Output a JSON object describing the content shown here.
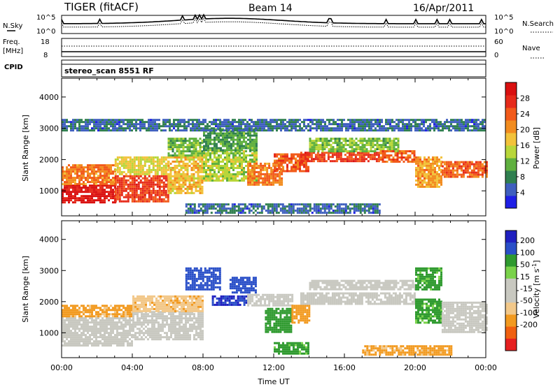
{
  "header": {
    "title": "TIGER (fitACF)",
    "beam": "Beam 14",
    "date": "16/Apr/2011"
  },
  "summary": {
    "nsky_label": "N.Sky",
    "nsearch_label": "N.Search",
    "noise_tick_top": "10^5",
    "noise_tick_bottom": "10^0",
    "freq_label_1": "Freq.",
    "freq_label_2": "[MHz]",
    "freq_tick_top": "18",
    "freq_tick_bottom": "8",
    "nave_label": "Nave",
    "nave_tick_top": "60",
    "nave_tick_bottom": "0",
    "cpid_label": "CPID",
    "cpid_value": "stereo_scan 8551 RF"
  },
  "colors": {
    "power": [
      "#1f1fe6",
      "#3f5fbf",
      "#2f7f4f",
      "#5fb03f",
      "#b8d63a",
      "#f2c23a",
      "#f28c1f",
      "#f25a1a",
      "#e62a1a",
      "#d91010"
    ],
    "velocity": [
      "#e62020",
      "#f06010",
      "#f29a20",
      "#f2c88a",
      "#c8c8c0",
      "#c8c8c0",
      "#7ad24a",
      "#2f9a2f",
      "#2a4fc8",
      "#2020c0"
    ],
    "ground": "#c8c8c0"
  },
  "chart_data": [
    {
      "type": "heatmap",
      "name": "power",
      "ylabel": "Slant Range [km]",
      "yticks": [
        1000,
        2000,
        3000,
        4000
      ],
      "ylim": [
        200,
        4600
      ],
      "xlim": [
        0,
        24
      ],
      "colorbar_label": "Power [dB]",
      "colorbar_ticks": [
        4,
        8,
        12,
        16,
        20,
        24,
        28
      ],
      "colorbar_range": [
        0,
        32
      ],
      "regions": [
        {
          "x": [
            0.0,
            3.0
          ],
          "y": [
            600,
            1200
          ],
          "v": 30
        },
        {
          "x": [
            0.0,
            3.0
          ],
          "y": [
            1200,
            1850
          ],
          "v": 22
        },
        {
          "x": [
            3.0,
            6.0
          ],
          "y": [
            650,
            1500
          ],
          "v": 26
        },
        {
          "x": [
            3.0,
            6.0
          ],
          "y": [
            1500,
            2100
          ],
          "v": 16
        },
        {
          "x": [
            6.0,
            8.0
          ],
          "y": [
            900,
            2100
          ],
          "v": 18
        },
        {
          "x": [
            6.0,
            8.0
          ],
          "y": [
            2100,
            2700
          ],
          "v": 12
        },
        {
          "x": [
            8.0,
            11.0
          ],
          "y": [
            1300,
            2300
          ],
          "v": 14
        },
        {
          "x": [
            8.0,
            11.0
          ],
          "y": [
            2300,
            3000
          ],
          "v": 10
        },
        {
          "x": [
            10.5,
            12.5
          ],
          "y": [
            1200,
            1900
          ],
          "v": 22
        },
        {
          "x": [
            12.0,
            14.0
          ],
          "y": [
            1600,
            2200
          ],
          "v": 24
        },
        {
          "x": [
            13.5,
            18.0
          ],
          "y": [
            1950,
            2250
          ],
          "v": 26
        },
        {
          "x": [
            14.0,
            19.0
          ],
          "y": [
            2250,
            2700
          ],
          "v": 12
        },
        {
          "x": [
            18.0,
            20.0
          ],
          "y": [
            1900,
            2300
          ],
          "v": 24
        },
        {
          "x": [
            20.0,
            21.5
          ],
          "y": [
            1100,
            2100
          ],
          "v": 20
        },
        {
          "x": [
            21.5,
            24.0
          ],
          "y": [
            1450,
            1950
          ],
          "v": 24
        },
        {
          "x": [
            7.0,
            18.0
          ],
          "y": [
            300,
            600
          ],
          "v": 6
        },
        {
          "x": [
            0.0,
            24.0
          ],
          "y": [
            2900,
            3300
          ],
          "v": 6
        }
      ]
    },
    {
      "type": "heatmap",
      "name": "velocity",
      "ylabel": "Slant Range [km]",
      "xlabel": "Time UT",
      "xticks": [
        "00:00",
        "04:00",
        "08:00",
        "12:00",
        "16:00",
        "20:00",
        "00:00"
      ],
      "yticks": [
        1000,
        2000,
        3000,
        4000
      ],
      "ylim": [
        200,
        4600
      ],
      "xlim": [
        0,
        24
      ],
      "colorbar_label": "Velocity [m s^-1]",
      "colorbar_ticks": [
        "200",
        "100",
        "50",
        "15",
        "-15",
        "-50",
        "-100",
        "-200"
      ],
      "regions": [
        {
          "x": [
            0.0,
            4.0
          ],
          "y": [
            600,
            1500
          ],
          "v": 0,
          "ground": true
        },
        {
          "x": [
            0.0,
            4.0
          ],
          "y": [
            1500,
            1900
          ],
          "v": -60
        },
        {
          "x": [
            4.0,
            8.0
          ],
          "y": [
            800,
            1700
          ],
          "v": 0,
          "ground": true
        },
        {
          "x": [
            4.0,
            8.0
          ],
          "y": [
            1700,
            2200
          ],
          "v": -40
        },
        {
          "x": [
            7.0,
            9.0
          ],
          "y": [
            2400,
            3100
          ],
          "v": 180
        },
        {
          "x": [
            8.5,
            10.5
          ],
          "y": [
            1900,
            2200
          ],
          "v": 200
        },
        {
          "x": [
            9.5,
            11.0
          ],
          "y": [
            2300,
            2800
          ],
          "v": 180
        },
        {
          "x": [
            10.5,
            13.0
          ],
          "y": [
            1900,
            2250
          ],
          "v": 0,
          "ground": true
        },
        {
          "x": [
            11.5,
            13.0
          ],
          "y": [
            1000,
            1800
          ],
          "v": 80
        },
        {
          "x": [
            13.0,
            14.0
          ],
          "y": [
            1300,
            1900
          ],
          "v": -80
        },
        {
          "x": [
            13.5,
            20.0
          ],
          "y": [
            1900,
            2300
          ],
          "v": 0,
          "ground": true
        },
        {
          "x": [
            14.0,
            20.0
          ],
          "y": [
            2400,
            2700
          ],
          "v": 0,
          "ground": true
        },
        {
          "x": [
            20.0,
            21.5
          ],
          "y": [
            1300,
            2100
          ],
          "v": 60
        },
        {
          "x": [
            20.0,
            21.5
          ],
          "y": [
            2400,
            3100
          ],
          "v": 60
        },
        {
          "x": [
            21.5,
            24.0
          ],
          "y": [
            1000,
            2000
          ],
          "v": 0,
          "ground": true
        },
        {
          "x": [
            12.0,
            14.0
          ],
          "y": [
            300,
            700
          ],
          "v": 60
        },
        {
          "x": [
            17.0,
            22.0
          ],
          "y": [
            300,
            600
          ],
          "v": -60
        }
      ]
    }
  ]
}
